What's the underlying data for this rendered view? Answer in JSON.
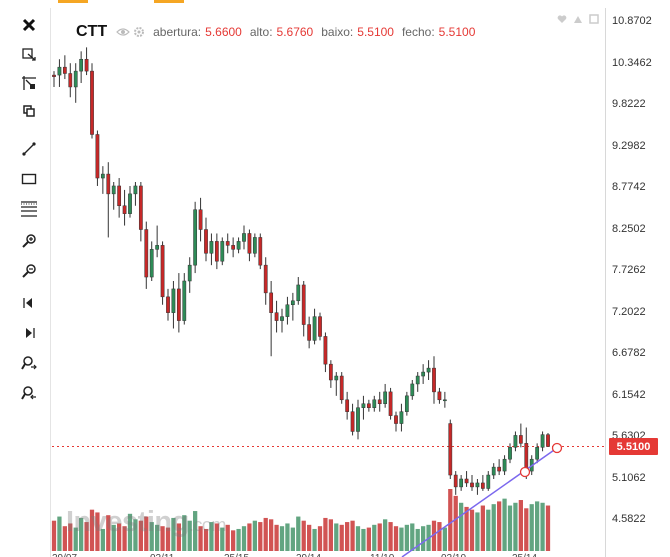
{
  "header": {
    "symbol": "CTT",
    "open_label": "abertura:",
    "open_value": "5.6600",
    "high_label": "alto:",
    "high_value": "5.6760",
    "low_label": "baixo:",
    "low_value": "5.5100",
    "close_label": "fecho:",
    "close_value": "5.5100"
  },
  "toolbar": {
    "items": [
      "close-icon",
      "cursor-icon",
      "crosshair-icon",
      "copy-icon",
      "trend-line-icon",
      "rectangle-icon",
      "fibonacci-icon",
      "zoom-in-icon",
      "zoom-out-icon",
      "scroll-left-icon",
      "scroll-right-icon",
      "zoom-in-right-icon",
      "zoom-out-right-icon"
    ]
  },
  "corner_icons": [
    "heart-icon",
    "save-icon",
    "restore-icon"
  ],
  "price_tag": "5.5100",
  "watermark": {
    "brand": "Investing",
    "suffix": ".com"
  },
  "colors": {
    "up": "#2e8b57",
    "down": "#c62828",
    "vol_up": "#5aa07a",
    "vol_down": "#cf4a4a",
    "accent": "#f5a623",
    "trendline": "#7b68ee"
  },
  "chart_data": {
    "type": "candlestick",
    "symbol": "CTT",
    "y_ticks": [
      "10.8702",
      "10.3462",
      "9.8222",
      "9.2982",
      "8.7742",
      "8.2502",
      "7.7262",
      "7.2022",
      "6.6782",
      "6.1542",
      "5.6302",
      "5.1062",
      "4.5822"
    ],
    "ylim": [
      4.5,
      10.9
    ],
    "x_labels": [
      "29/07",
      "02/11",
      "25/15",
      "29/14",
      "11/10",
      "02/10",
      "25/14"
    ],
    "last_close": 5.51,
    "candles": [
      [
        10.2,
        10.25,
        10.05,
        10.18
      ],
      [
        10.2,
        10.4,
        10.05,
        10.3
      ],
      [
        10.3,
        10.45,
        10.15,
        10.22
      ],
      [
        10.22,
        10.35,
        9.92,
        10.05
      ],
      [
        10.05,
        10.35,
        9.85,
        10.25
      ],
      [
        10.25,
        10.5,
        10.1,
        10.4
      ],
      [
        10.4,
        10.55,
        10.2,
        10.25
      ],
      [
        10.25,
        10.35,
        9.4,
        9.45
      ],
      [
        9.45,
        9.5,
        8.8,
        8.9
      ],
      [
        8.9,
        9.05,
        8.7,
        8.95
      ],
      [
        8.95,
        9.1,
        8.15,
        8.7
      ],
      [
        8.7,
        8.85,
        8.5,
        8.8
      ],
      [
        8.8,
        8.9,
        8.4,
        8.55
      ],
      [
        8.55,
        8.75,
        8.3,
        8.45
      ],
      [
        8.45,
        8.8,
        8.4,
        8.7
      ],
      [
        8.7,
        8.85,
        8.55,
        8.8
      ],
      [
        8.8,
        8.85,
        8.1,
        8.25
      ],
      [
        8.25,
        8.35,
        7.5,
        7.65
      ],
      [
        7.65,
        8.1,
        7.6,
        8.0
      ],
      [
        8.0,
        8.3,
        7.9,
        8.05
      ],
      [
        8.05,
        8.1,
        7.3,
        7.4
      ],
      [
        7.4,
        7.5,
        7.1,
        7.2
      ],
      [
        7.2,
        7.6,
        7.0,
        7.5
      ],
      [
        7.5,
        7.7,
        6.95,
        7.1
      ],
      [
        7.1,
        7.7,
        7.05,
        7.6
      ],
      [
        7.6,
        7.9,
        7.45,
        7.8
      ],
      [
        7.8,
        8.6,
        7.7,
        8.5
      ],
      [
        8.5,
        8.65,
        8.1,
        8.25
      ],
      [
        8.25,
        8.4,
        7.85,
        7.95
      ],
      [
        7.95,
        8.2,
        7.8,
        8.1
      ],
      [
        8.1,
        8.2,
        7.75,
        7.85
      ],
      [
        7.85,
        8.15,
        7.8,
        8.1
      ],
      [
        8.1,
        8.2,
        7.95,
        8.05
      ],
      [
        8.05,
        8.15,
        7.9,
        8.0
      ],
      [
        8.0,
        8.15,
        7.95,
        8.1
      ],
      [
        8.1,
        8.3,
        8.0,
        8.2
      ],
      [
        8.2,
        8.25,
        7.85,
        7.95
      ],
      [
        7.95,
        8.2,
        7.9,
        8.15
      ],
      [
        8.15,
        8.2,
        7.75,
        7.8
      ],
      [
        7.8,
        7.9,
        7.3,
        7.45
      ],
      [
        7.45,
        7.6,
        6.65,
        7.2
      ],
      [
        7.2,
        7.35,
        6.95,
        7.1
      ],
      [
        7.1,
        7.25,
        6.95,
        7.15
      ],
      [
        7.15,
        7.4,
        7.05,
        7.3
      ],
      [
        7.3,
        7.45,
        7.1,
        7.35
      ],
      [
        7.35,
        7.65,
        7.3,
        7.55
      ],
      [
        7.55,
        7.6,
        6.9,
        7.05
      ],
      [
        7.05,
        7.15,
        6.75,
        6.85
      ],
      [
        6.85,
        7.25,
        6.8,
        7.15
      ],
      [
        7.15,
        7.2,
        6.85,
        6.9
      ],
      [
        6.9,
        6.95,
        6.45,
        6.55
      ],
      [
        6.55,
        6.6,
        6.25,
        6.35
      ],
      [
        6.35,
        6.45,
        6.15,
        6.4
      ],
      [
        6.4,
        6.45,
        6.05,
        6.1
      ],
      [
        6.1,
        6.2,
        5.85,
        5.95
      ],
      [
        5.95,
        6.05,
        5.65,
        5.7
      ],
      [
        5.7,
        6.1,
        5.6,
        6.0
      ],
      [
        6.0,
        6.15,
        5.85,
        6.05
      ],
      [
        6.05,
        6.1,
        5.95,
        6.0
      ],
      [
        6.0,
        6.15,
        5.95,
        6.1
      ],
      [
        6.1,
        6.2,
        5.95,
        6.05
      ],
      [
        6.05,
        6.3,
        6.0,
        6.2
      ],
      [
        6.2,
        6.25,
        5.85,
        5.9
      ],
      [
        5.9,
        5.95,
        5.7,
        5.8
      ],
      [
        5.8,
        6.05,
        5.7,
        5.95
      ],
      [
        5.95,
        6.2,
        5.9,
        6.15
      ],
      [
        6.15,
        6.35,
        6.1,
        6.3
      ],
      [
        6.3,
        6.45,
        6.2,
        6.4
      ],
      [
        6.4,
        6.55,
        6.3,
        6.45
      ],
      [
        6.45,
        6.6,
        6.35,
        6.5
      ],
      [
        6.5,
        6.65,
        6.05,
        6.2
      ],
      [
        6.2,
        6.25,
        6.05,
        6.1
      ],
      [
        6.1,
        6.2,
        6.0,
        6.1
      ],
      [
        5.8,
        5.85,
        5.1,
        5.15
      ],
      [
        5.15,
        5.2,
        4.9,
        5.0
      ],
      [
        5.0,
        5.15,
        4.95,
        5.1
      ],
      [
        5.1,
        5.2,
        5.0,
        5.05
      ],
      [
        5.05,
        5.15,
        4.95,
        5.0
      ],
      [
        5.0,
        5.1,
        4.9,
        5.05
      ],
      [
        5.05,
        5.15,
        4.95,
        4.98
      ],
      [
        4.98,
        5.2,
        4.95,
        5.15
      ],
      [
        5.15,
        5.3,
        5.1,
        5.25
      ],
      [
        5.25,
        5.35,
        5.15,
        5.2
      ],
      [
        5.2,
        5.4,
        5.15,
        5.35
      ],
      [
        5.35,
        5.55,
        5.3,
        5.5
      ],
      [
        5.5,
        5.7,
        5.45,
        5.65
      ],
      [
        5.65,
        5.8,
        5.5,
        5.55
      ],
      [
        5.55,
        5.75,
        5.1,
        5.2
      ],
      [
        5.2,
        5.4,
        5.15,
        5.35
      ],
      [
        5.35,
        5.55,
        5.3,
        5.5
      ],
      [
        5.5,
        5.7,
        5.45,
        5.66
      ],
      [
        5.66,
        5.68,
        5.51,
        5.51
      ]
    ],
    "volume": [
      22,
      25,
      18,
      20,
      17,
      24,
      21,
      30,
      28,
      16,
      26,
      19,
      20,
      18,
      27,
      23,
      22,
      25,
      21,
      19,
      18,
      17,
      24,
      20,
      26,
      22,
      29,
      18,
      16,
      21,
      20,
      17,
      19,
      15,
      16,
      18,
      20,
      22,
      21,
      24,
      23,
      19,
      18,
      20,
      17,
      25,
      22,
      19,
      16,
      18,
      24,
      23,
      20,
      19,
      21,
      22,
      18,
      16,
      17,
      19,
      20,
      23,
      21,
      18,
      17,
      19,
      20,
      16,
      18,
      19,
      22,
      21,
      17,
      45,
      40,
      35,
      32,
      30,
      28,
      33,
      30,
      34,
      36,
      38,
      33,
      35,
      37,
      31,
      34,
      36,
      35,
      33
    ]
  }
}
